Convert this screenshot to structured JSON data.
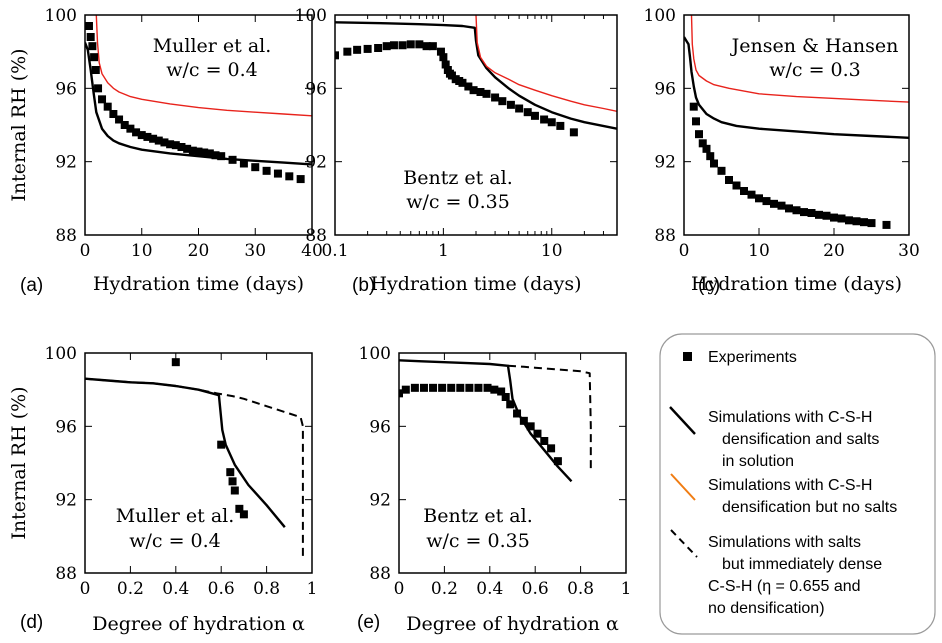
{
  "colors": {
    "exp": "#000000",
    "sim_salts": "#000000",
    "sim_nosalts": "#e8231c",
    "legend_orange": "#f07c12",
    "legend_border": "#9a9a9a"
  },
  "legend": {
    "items": [
      {
        "key": "exp",
        "label_lines": [
          "Experiments"
        ]
      },
      {
        "key": "solid",
        "label_lines": [
          "Simulations with C-S-H",
          "densification and salts",
          "in solution"
        ]
      },
      {
        "key": "orange",
        "label_lines": [
          "Simulations with C-S-H",
          "densification but no salts"
        ]
      },
      {
        "key": "dashed",
        "label_lines": [
          "Simulations with salts",
          "but immediately dense",
          "C-S-H (η = 0.655 and",
          "no densification)"
        ]
      }
    ]
  },
  "chart_data": [
    {
      "id": "a",
      "type": "line",
      "panel_label": "(a)",
      "xlabel": "Hydration time (days)",
      "ylabel": "Internal RH (%)",
      "xscale": "linear",
      "xlim": [
        0,
        40
      ],
      "ylim": [
        88,
        100
      ],
      "xticks": [
        0,
        10,
        20,
        30,
        40
      ],
      "xtick_labels": [
        "0",
        "10",
        "20",
        "30",
        "40"
      ],
      "yticks": [
        88,
        92,
        96,
        100
      ],
      "ytick_labels": [
        "88",
        "92",
        "96",
        "100"
      ],
      "annotation": [
        "Muller et al.",
        "w/c = 0.4"
      ],
      "series": [
        {
          "name": "Simulation (C-S-H densification + salts)",
          "style": "solid-black",
          "x": [
            0,
            0.5,
            1,
            1.5,
            2,
            3,
            4,
            5,
            6,
            8,
            10,
            15,
            20,
            25,
            30,
            35,
            40
          ],
          "y": [
            98.5,
            98.1,
            97.0,
            95.8,
            94.7,
            93.8,
            93.4,
            93.15,
            93.0,
            92.8,
            92.65,
            92.45,
            92.3,
            92.15,
            92.05,
            91.95,
            91.85
          ]
        },
        {
          "name": "Simulation (no salts)",
          "style": "red",
          "x": [
            2,
            2.2,
            2.5,
            3,
            4,
            5,
            6,
            8,
            10,
            15,
            20,
            25,
            30,
            35,
            40
          ],
          "y": [
            100,
            98.5,
            97.4,
            96.8,
            96.3,
            96.0,
            95.8,
            95.55,
            95.4,
            95.15,
            94.95,
            94.8,
            94.7,
            94.6,
            94.5
          ]
        },
        {
          "name": "Experiments",
          "style": "square",
          "x": [
            0.7,
            1,
            1.3,
            1.6,
            1.9,
            2.3,
            3,
            4,
            5,
            6,
            7,
            8,
            9,
            10,
            11,
            12,
            13,
            14,
            15,
            16,
            17,
            18,
            19,
            20,
            21,
            22,
            23,
            24,
            26,
            28,
            30,
            32,
            34,
            36,
            38
          ],
          "y": [
            99.4,
            98.8,
            98.3,
            97.7,
            97.0,
            96.0,
            95.4,
            95.0,
            94.6,
            94.3,
            94.0,
            93.8,
            93.6,
            93.45,
            93.35,
            93.25,
            93.15,
            93.05,
            92.95,
            92.9,
            92.8,
            92.7,
            92.6,
            92.55,
            92.5,
            92.45,
            92.35,
            92.3,
            92.1,
            91.9,
            91.7,
            91.5,
            91.35,
            91.2,
            91.05
          ]
        }
      ]
    },
    {
      "id": "b",
      "type": "line",
      "panel_label": "(b)",
      "xlabel": "Hydration time (days)",
      "ylabel": "",
      "xscale": "log",
      "xlim": [
        0.1,
        40
      ],
      "ylim": [
        88,
        100
      ],
      "xticks": [
        0.1,
        1,
        10
      ],
      "xtick_labels": [
        "0.1",
        "1",
        "10"
      ],
      "yticks": [
        88,
        92,
        96,
        100
      ],
      "ytick_labels": [
        "88",
        "92",
        "96",
        "100"
      ],
      "annotation": [
        "Bentz et al.",
        "w/c = 0.35"
      ],
      "series": [
        {
          "name": "Simulation (C-S-H densification + salts)",
          "style": "solid-black",
          "x": [
            0.1,
            0.3,
            0.6,
            1,
            1.5,
            1.95,
            2.0,
            2.1,
            2.5,
            3,
            4,
            5,
            7,
            10,
            15,
            20,
            40
          ],
          "y": [
            99.6,
            99.55,
            99.5,
            99.45,
            99.4,
            99.3,
            98.6,
            97.8,
            97.1,
            96.6,
            96.0,
            95.6,
            95.1,
            94.7,
            94.35,
            94.15,
            93.8
          ]
        },
        {
          "name": "Simulation (no salts)",
          "style": "red",
          "x": [
            2,
            2.05,
            2.2,
            2.5,
            3,
            4,
            5,
            7,
            10,
            15,
            20,
            30,
            40
          ],
          "y": [
            100,
            98.5,
            97.7,
            97.2,
            96.85,
            96.5,
            96.2,
            95.9,
            95.6,
            95.3,
            95.1,
            94.9,
            94.75
          ]
        },
        {
          "name": "Experiments",
          "style": "square",
          "x": [
            0.1,
            0.13,
            0.16,
            0.2,
            0.25,
            0.3,
            0.35,
            0.42,
            0.5,
            0.6,
            0.7,
            0.8,
            0.95,
            1.0,
            1.05,
            1.1,
            1.15,
            1.2,
            1.3,
            1.4,
            1.5,
            1.7,
            1.9,
            2.2,
            2.5,
            3,
            3.5,
            4.2,
            5,
            6,
            7,
            8.5,
            10,
            12,
            16
          ],
          "y": [
            97.8,
            98.0,
            98.1,
            98.15,
            98.2,
            98.3,
            98.35,
            98.35,
            98.4,
            98.4,
            98.3,
            98.3,
            98.0,
            97.7,
            97.3,
            97.0,
            96.8,
            96.7,
            96.5,
            96.4,
            96.3,
            96.1,
            95.9,
            95.8,
            95.7,
            95.5,
            95.3,
            95.1,
            94.9,
            94.7,
            94.5,
            94.3,
            94.15,
            93.95,
            93.6
          ]
        }
      ]
    },
    {
      "id": "c",
      "type": "line",
      "panel_label": "(c)",
      "xlabel": "Hydration time (days)",
      "ylabel": "",
      "xscale": "linear",
      "xlim": [
        0,
        30
      ],
      "ylim": [
        88,
        100
      ],
      "xticks": [
        0,
        10,
        20,
        30
      ],
      "xtick_labels": [
        "0",
        "10",
        "20",
        "30"
      ],
      "yticks": [
        88,
        92,
        96,
        100
      ],
      "ytick_labels": [
        "88",
        "92",
        "96",
        "100"
      ],
      "annotation": [
        "Jensen & Hansen",
        "w/c = 0.3"
      ],
      "series": [
        {
          "name": "Simulation (C-S-H densification + salts)",
          "style": "solid-black",
          "x": [
            0,
            0.3,
            0.6,
            0.8,
            1,
            1.3,
            1.6,
            2,
            3,
            4,
            5,
            7,
            10,
            15,
            20,
            25,
            30
          ],
          "y": [
            98.8,
            98.6,
            98.4,
            97.7,
            96.9,
            96.1,
            95.5,
            95.1,
            94.6,
            94.35,
            94.15,
            93.95,
            93.8,
            93.65,
            93.5,
            93.4,
            93.3
          ]
        },
        {
          "name": "Simulation (no salts)",
          "style": "red",
          "x": [
            1,
            1.1,
            1.3,
            1.6,
            2,
            3,
            4,
            6,
            8,
            10,
            15,
            20,
            25,
            30
          ],
          "y": [
            100,
            98.4,
            97.6,
            97.0,
            96.7,
            96.4,
            96.2,
            96.0,
            95.85,
            95.7,
            95.55,
            95.45,
            95.35,
            95.25
          ]
        },
        {
          "name": "Experiments",
          "style": "square",
          "x": [
            1.3,
            1.6,
            2,
            2.5,
            3,
            3.5,
            4,
            5,
            6,
            7,
            8,
            9,
            10,
            11,
            12,
            13,
            14,
            15,
            16,
            17,
            18,
            19,
            20,
            21,
            22,
            23,
            24,
            25,
            27
          ],
          "y": [
            95.0,
            94.2,
            93.5,
            93.0,
            92.7,
            92.3,
            91.9,
            91.5,
            91.0,
            90.7,
            90.4,
            90.2,
            90.0,
            89.85,
            89.7,
            89.6,
            89.45,
            89.35,
            89.25,
            89.2,
            89.1,
            89.05,
            88.95,
            88.9,
            88.8,
            88.75,
            88.7,
            88.65,
            88.55
          ]
        }
      ]
    },
    {
      "id": "d",
      "type": "line",
      "panel_label": "(d)",
      "xlabel": "Degree of hydration α",
      "ylabel": "Internal RH (%)",
      "xscale": "linear",
      "xlim": [
        0,
        1
      ],
      "ylim": [
        88,
        100
      ],
      "xticks": [
        0,
        0.2,
        0.4,
        0.6,
        0.8,
        1
      ],
      "xtick_labels": [
        "0",
        "0.2",
        "0.4",
        "0.6",
        "0.8",
        "1"
      ],
      "yticks": [
        88,
        92,
        96,
        100
      ],
      "ytick_labels": [
        "88",
        "92",
        "96",
        "100"
      ],
      "annotation": [
        "Muller et al.",
        "w/c = 0.4"
      ],
      "series": [
        {
          "name": "Simulation (C-S-H densification + salts)",
          "style": "solid-black",
          "x": [
            0,
            0.1,
            0.2,
            0.3,
            0.4,
            0.5,
            0.59,
            0.605,
            0.62,
            0.66,
            0.72,
            0.8,
            0.88
          ],
          "y": [
            98.6,
            98.5,
            98.4,
            98.35,
            98.2,
            98.0,
            97.7,
            95.8,
            95.0,
            93.9,
            92.8,
            91.7,
            90.5
          ]
        },
        {
          "name": "Simulation (dense C-S-H, salts)",
          "style": "dashed",
          "x": [
            0,
            0.1,
            0.2,
            0.3,
            0.4,
            0.5,
            0.58,
            0.65,
            0.7,
            0.8,
            0.9,
            0.95,
            0.96,
            0.96,
            0.96
          ],
          "y": [
            98.6,
            98.5,
            98.4,
            98.35,
            98.2,
            98.0,
            97.8,
            97.65,
            97.5,
            97.1,
            96.7,
            96.5,
            96.0,
            92.0,
            88.8
          ]
        },
        {
          "name": "Experiments",
          "style": "square",
          "x": [
            0.4,
            0.6,
            0.64,
            0.65,
            0.66,
            0.68,
            0.7
          ],
          "y": [
            99.5,
            95.0,
            93.5,
            93.0,
            92.5,
            91.5,
            91.2
          ]
        }
      ]
    },
    {
      "id": "e",
      "type": "line",
      "panel_label": "(e)",
      "xlabel": "Degree of hydration α",
      "ylabel": "",
      "xscale": "linear",
      "xlim": [
        0,
        1
      ],
      "ylim": [
        88,
        100
      ],
      "xticks": [
        0,
        0.2,
        0.4,
        0.6,
        0.8,
        1
      ],
      "xtick_labels": [
        "0",
        "0.2",
        "0.4",
        "0.6",
        "0.8",
        "1"
      ],
      "yticks": [
        88,
        92,
        96,
        100
      ],
      "ytick_labels": [
        "88",
        "92",
        "96",
        "100"
      ],
      "annotation": [
        "Bentz et al.",
        "w/c = 0.35"
      ],
      "series": [
        {
          "name": "Simulation (C-S-H densification + salts)",
          "style": "solid-black",
          "x": [
            0,
            0.1,
            0.2,
            0.3,
            0.4,
            0.48,
            0.49,
            0.5,
            0.53,
            0.58,
            0.64,
            0.7,
            0.76
          ],
          "y": [
            99.6,
            99.55,
            99.5,
            99.45,
            99.4,
            99.3,
            98.5,
            97.5,
            96.6,
            95.6,
            94.7,
            93.8,
            93.0
          ]
        },
        {
          "name": "Simulation (dense C-S-H, salts)",
          "style": "dashed",
          "x": [
            0.48,
            0.55,
            0.6,
            0.7,
            0.8,
            0.84,
            0.845,
            0.845
          ],
          "y": [
            99.3,
            99.25,
            99.2,
            99.1,
            99.0,
            98.9,
            96.0,
            93.5
          ]
        },
        {
          "name": "Experiments",
          "style": "square",
          "x": [
            0,
            0.03,
            0.07,
            0.11,
            0.15,
            0.19,
            0.23,
            0.27,
            0.31,
            0.35,
            0.39,
            0.42,
            0.45,
            0.47,
            0.49,
            0.52,
            0.55,
            0.58,
            0.61,
            0.64,
            0.67,
            0.7
          ],
          "y": [
            97.8,
            98.0,
            98.1,
            98.1,
            98.1,
            98.1,
            98.1,
            98.1,
            98.1,
            98.1,
            98.1,
            98.0,
            97.9,
            97.6,
            97.2,
            96.7,
            96.3,
            96.0,
            95.6,
            95.2,
            94.8,
            94.1
          ]
        }
      ]
    }
  ]
}
